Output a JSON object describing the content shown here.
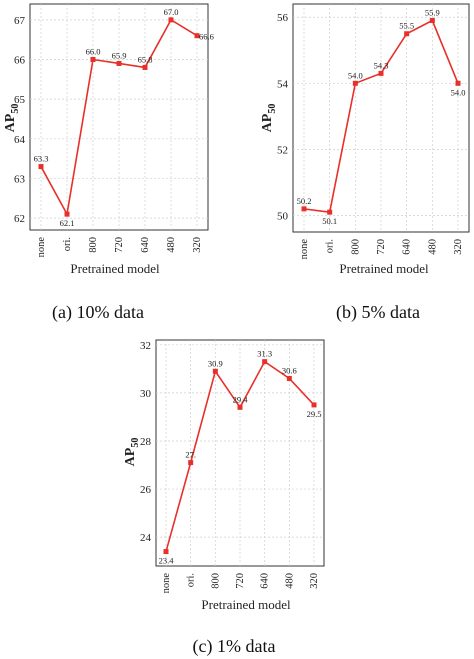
{
  "chart_data": [
    {
      "type": "line",
      "categories": [
        "none",
        "ori.",
        "800",
        "720",
        "640",
        "480",
        "320"
      ],
      "series": [
        {
          "values": [
            63.3,
            62.1,
            66.0,
            65.9,
            65.8,
            67.0,
            66.6
          ]
        }
      ],
      "data_labels": [
        "63.3",
        "62.1",
        "66.0",
        "65.9",
        "65.8",
        "67.0",
        "66.6"
      ],
      "ylim": [
        61.7,
        67.4
      ],
      "yticks": [
        "62",
        "63",
        "64",
        "65",
        "66",
        "67"
      ],
      "xlabel": "Pretrained model",
      "ylabel": "AP",
      "ylabel_sub": "50",
      "caption": "(a) 10% data",
      "color": "#e8302a"
    },
    {
      "type": "line",
      "categories": [
        "none",
        "ori.",
        "800",
        "720",
        "640",
        "480",
        "320"
      ],
      "series": [
        {
          "values": [
            50.2,
            50.1,
            54.0,
            54.3,
            55.5,
            55.9,
            54.0
          ]
        }
      ],
      "data_labels": [
        "50.2",
        "50.1",
        "54.0",
        "54.3",
        "55.5",
        "55.9",
        "54.0"
      ],
      "ylim": [
        49.5,
        56.4
      ],
      "yticks": [
        "50",
        "52",
        "54",
        "56"
      ],
      "xlabel": "Pretrained model",
      "ylabel": "AP",
      "ylabel_sub": "50",
      "caption": "(b) 5% data",
      "color": "#e8302a"
    },
    {
      "type": "line",
      "categories": [
        "none",
        "ori.",
        "800",
        "720",
        "640",
        "480",
        "320"
      ],
      "series": [
        {
          "values": [
            23.4,
            27.1,
            30.9,
            29.4,
            31.3,
            30.6,
            29.5
          ]
        }
      ],
      "data_labels": [
        "23.4",
        "27.",
        "30.9",
        "29.4",
        "31.3",
        "30.6",
        "29.5"
      ],
      "ylim": [
        22.8,
        32.2
      ],
      "yticks": [
        "24",
        "26",
        "28",
        "30",
        "32"
      ],
      "xlabel": "Pretrained model",
      "ylabel": "AP",
      "ylabel_sub": "50",
      "caption": "(c) 1% data",
      "color": "#e8302a"
    }
  ]
}
